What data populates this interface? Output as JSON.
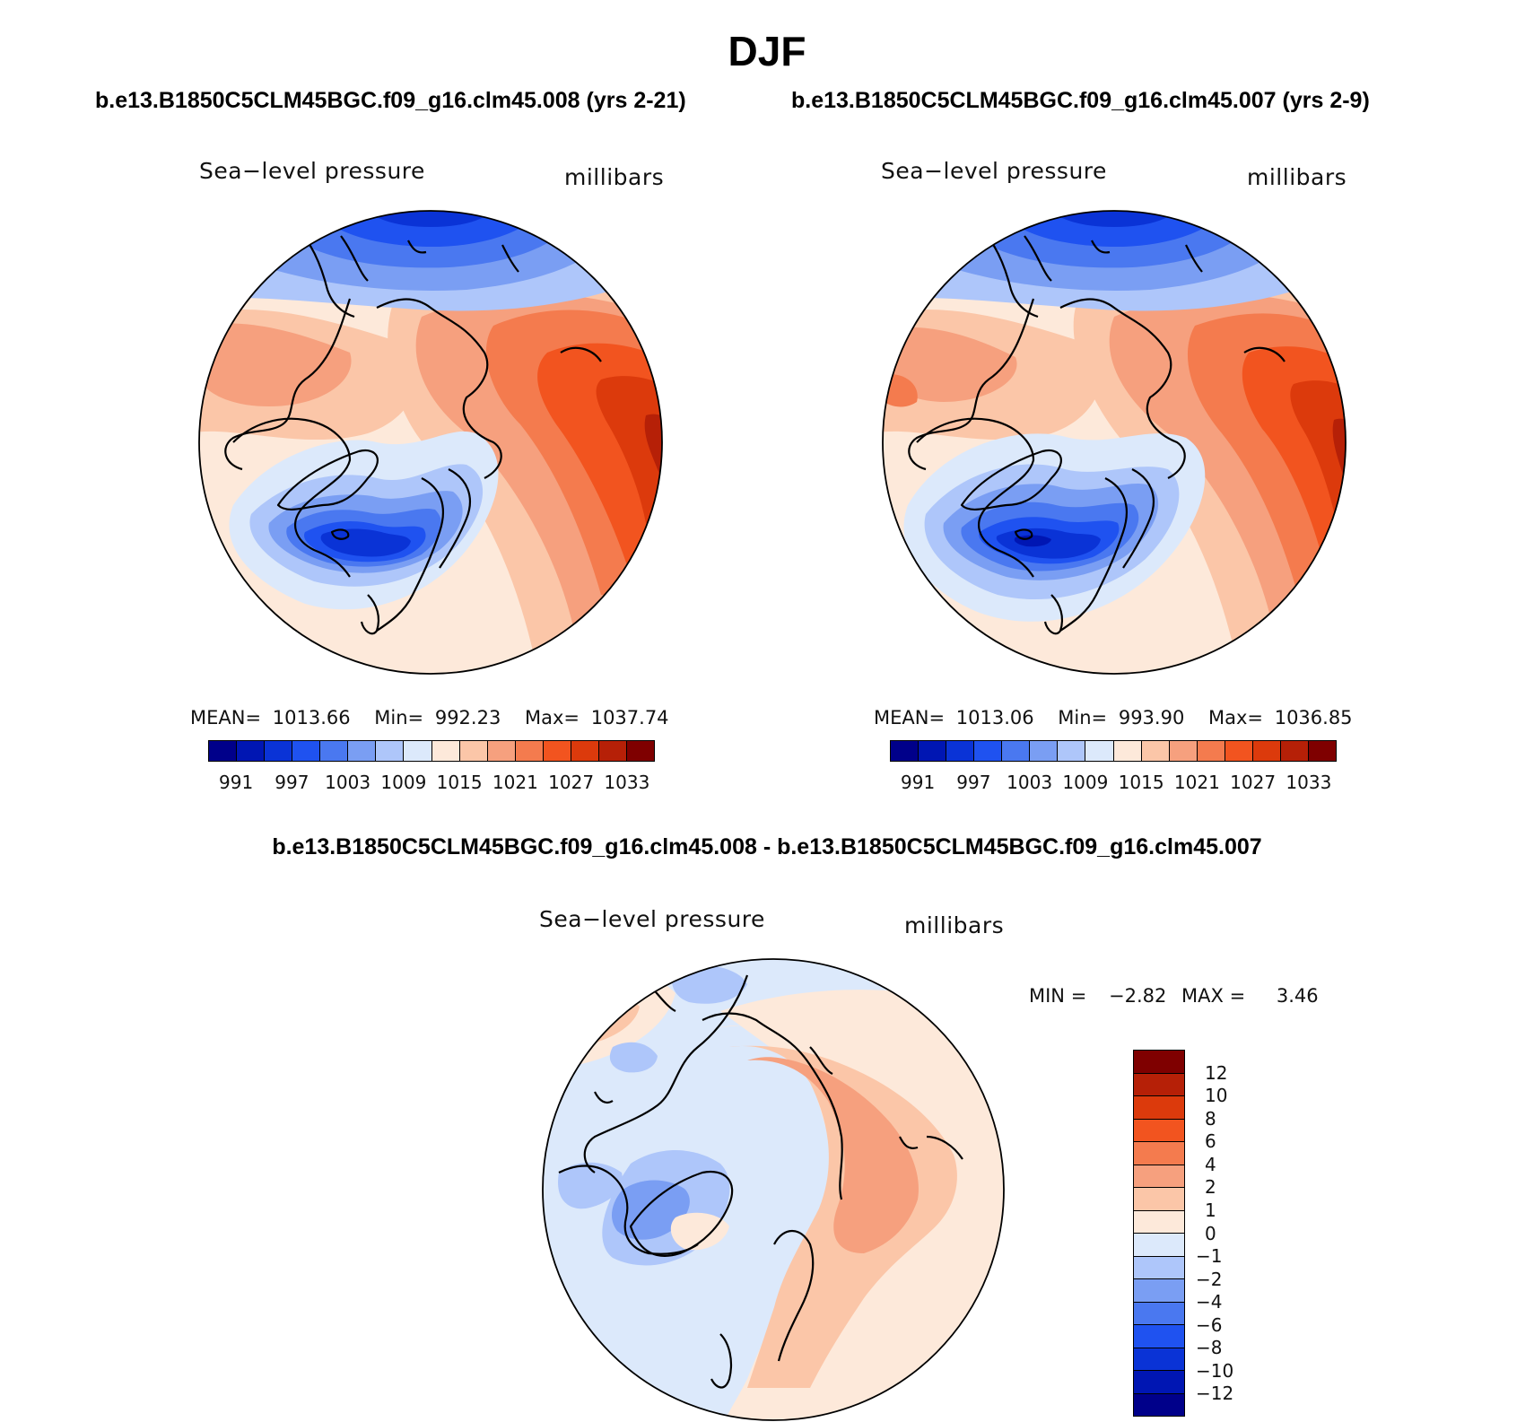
{
  "main_title": "DJF",
  "left_case_title": "b.e13.B1850C5CLM45BGC.f09_g16.clm45.008 (yrs 2-21)",
  "right_case_title": "b.e13.B1850C5CLM45BGC.f09_g16.clm45.007 (yrs 2-9)",
  "diff_title": "b.e13.B1850C5CLM45BGC.f09_g16.clm45.008 - b.e13.B1850C5CLM45BGC.f09_g16.clm45.007",
  "panels": {
    "left": {
      "variable": "Sea−level pressure",
      "units": "millibars",
      "mean_label": "MEAN=",
      "mean": "1013.66",
      "min_label": "Min=",
      "min": "992.23",
      "max_label": "Max=",
      "max": "1037.74"
    },
    "right": {
      "variable": "Sea−level pressure",
      "units": "millibars",
      "mean_label": "MEAN=",
      "mean": "1013.06",
      "min_label": "Min=",
      "min": "993.90",
      "max_label": "Max=",
      "max": "1036.85"
    },
    "diff": {
      "variable": "Sea−level pressure",
      "units": "millibars",
      "min_label": "MIN =",
      "min": "−2.82",
      "max_label": "MAX =",
      "max": "3.46"
    }
  },
  "field_colorbar": {
    "colors": [
      "#00008a",
      "#0016b3",
      "#0a33d6",
      "#1f52f0",
      "#4a78f0",
      "#7a9ef3",
      "#aec6fa",
      "#dce9fb",
      "#fde9da",
      "#fbc6a8",
      "#f6a07e",
      "#f47b4e",
      "#f2541f",
      "#dc3a0c",
      "#b62007",
      "#7f0000"
    ],
    "tick_labels": [
      "991",
      "997",
      "1003",
      "1009",
      "1015",
      "1021",
      "1027",
      "1033"
    ]
  },
  "diff_colorbar": {
    "colors": [
      "#7f0000",
      "#b62007",
      "#dc3a0c",
      "#f2541f",
      "#f47b4e",
      "#f6a07e",
      "#fbc6a8",
      "#fde9da",
      "#dce9fb",
      "#aec6fa",
      "#7a9ef3",
      "#4a78f0",
      "#1f52f0",
      "#0a33d6",
      "#0016b3",
      "#00008a"
    ],
    "tick_labels": [
      "12",
      "10",
      "8",
      "6",
      "4",
      "2",
      "1",
      "0",
      "−1",
      "−2",
      "−4",
      "−6",
      "−8",
      "−10",
      "−12"
    ]
  }
}
